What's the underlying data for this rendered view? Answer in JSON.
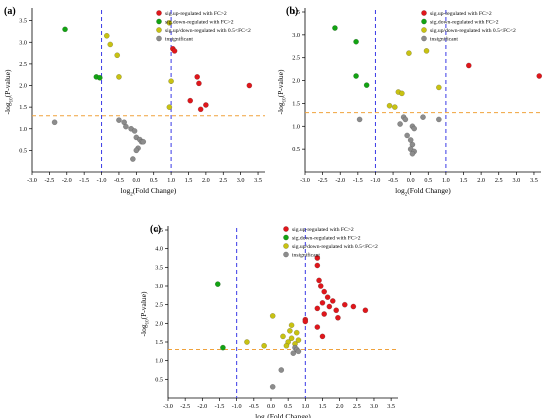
{
  "panels": [
    {
      "label": "(a)",
      "chart_data": {
        "type": "scatter",
        "xlabel_prefix": "log",
        "xlabel_sub": "2",
        "xlabel_suffix": "(Fold Change)",
        "ylabel_prefix": "-log",
        "ylabel_sub": "10",
        "ylabel_suffix": "(P-value)",
        "xlim": [
          -3.0,
          3.7
        ],
        "ylim": [
          0,
          3.7
        ],
        "xticks": [
          "-3.0",
          "-2.5",
          "-2.0",
          "-1.5",
          "-1.0",
          "-0.5",
          "0.0",
          "0.5",
          "1.0",
          "1.5",
          "2.0",
          "2.5",
          "3.0",
          "3.5"
        ],
        "yticks": [
          "0.5",
          "1.0",
          "1.5",
          "2.0",
          "2.5",
          "3.0",
          "3.5"
        ],
        "threshold_y": 1.3,
        "threshold_x": [
          -1,
          1
        ],
        "legend_position": "top-right",
        "series": [
          {
            "name": "sig.up-regulated with FC>2",
            "color": "#e0161b",
            "x": [
              1.05,
              1.1,
              1.55,
              1.75,
              1.8,
              2.0,
              1.85,
              3.25
            ],
            "y": [
              2.85,
              2.8,
              1.65,
              2.2,
              2.05,
              1.55,
              1.45,
              2.0
            ]
          },
          {
            "name": "sig.down-regulated with FC>2",
            "color": "#12a312",
            "x": [
              -2.05,
              -1.15,
              -1.05
            ],
            "y": [
              3.3,
              2.2,
              2.18
            ]
          },
          {
            "name": "sig.up/down-regulated with 0.5<FC<2",
            "color": "#c8c212",
            "x": [
              -0.85,
              -0.75,
              -0.55,
              -0.5,
              0.95,
              1.0,
              0.95
            ],
            "y": [
              3.15,
              2.95,
              2.7,
              2.2,
              3.45,
              2.1,
              1.5
            ]
          },
          {
            "name": "insignificant",
            "color": "#8c8c8c",
            "x": [
              -2.35,
              -0.5,
              -0.35,
              -0.3,
              -0.15,
              -0.05,
              0.0,
              0.1,
              0.15,
              0.2,
              0.05,
              0.0,
              -0.1
            ],
            "y": [
              1.15,
              1.2,
              1.15,
              1.05,
              1.0,
              0.95,
              0.8,
              0.75,
              0.7,
              0.7,
              0.55,
              0.5,
              0.3
            ]
          }
        ]
      }
    },
    {
      "label": "(b)",
      "chart_data": {
        "type": "scatter",
        "xlabel_prefix": "log",
        "xlabel_sub": "2",
        "xlabel_suffix": "(Fold Change)",
        "ylabel_prefix": "-log",
        "ylabel_sub": "10",
        "ylabel_suffix": "(P-value)",
        "xlim": [
          -3.0,
          3.7
        ],
        "ylim": [
          0,
          3.5
        ],
        "xticks": [
          "-3.0",
          "-2.5",
          "-2.0",
          "-1.5",
          "-1.0",
          "-0.5",
          "0.0",
          "0.5",
          "1.0",
          "1.5",
          "2.0",
          "2.5",
          "3.0",
          "3.5"
        ],
        "yticks": [
          "0.5",
          "1.0",
          "1.5",
          "2.0",
          "2.5",
          "3.0",
          "3.5"
        ],
        "threshold_y": 1.3,
        "threshold_x": [
          -1,
          1
        ],
        "legend_position": "top-right",
        "series": [
          {
            "name": "sig.up-regulated with FC>2",
            "color": "#e0161b",
            "x": [
              1.65,
              3.65
            ],
            "y": [
              2.33,
              2.1
            ]
          },
          {
            "name": "sig.down-regulated with FC>2",
            "color": "#12a312",
            "x": [
              -2.15,
              -1.55,
              -1.55,
              -1.25
            ],
            "y": [
              3.15,
              2.85,
              2.1,
              1.9
            ]
          },
          {
            "name": "sig.up/down-regulated with 0.5<FC<2",
            "color": "#c8c212",
            "x": [
              -0.05,
              0.45,
              -0.35,
              -0.25,
              -0.6,
              -0.45,
              0.8
            ],
            "y": [
              2.6,
              2.65,
              1.75,
              1.72,
              1.45,
              1.42,
              1.85
            ]
          },
          {
            "name": "insignificant",
            "color": "#8c8c8c",
            "x": [
              -1.45,
              -0.2,
              -0.15,
              -0.3,
              0.05,
              0.1,
              0.35,
              0.8,
              -0.1,
              0.0,
              0.05,
              0.0,
              0.1,
              0.05
            ],
            "y": [
              1.15,
              1.2,
              1.15,
              1.05,
              1.0,
              0.95,
              1.2,
              1.15,
              0.8,
              0.7,
              0.6,
              0.5,
              0.45,
              0.4
            ]
          }
        ]
      }
    },
    {
      "label": "(c)",
      "chart_data": {
        "type": "scatter",
        "xlabel_prefix": "log",
        "xlabel_sub": "2",
        "xlabel_suffix": "(Fold Change)",
        "ylabel_prefix": "-log",
        "ylabel_sub": "10",
        "ylabel_suffix": "(P-value)",
        "xlim": [
          -3.0,
          3.7
        ],
        "ylim": [
          0,
          4.5
        ],
        "xticks": [
          "-3.0",
          "-2.5",
          "-2.0",
          "-1.5",
          "-1.0",
          "-0.5",
          "0.0",
          "0.5",
          "1.0",
          "1.5",
          "2.0",
          "2.5",
          "3.0",
          "3.5"
        ],
        "yticks": [
          "0.5",
          "1.0",
          "1.5",
          "2.0",
          "2.5",
          "3.0",
          "3.5",
          "4.0",
          "4.5"
        ],
        "threshold_y": 1.3,
        "threshold_x": [
          -1,
          1
        ],
        "legend_position": "top-center",
        "series": [
          {
            "name": "sig.up-regulated with FC>2",
            "color": "#e0161b",
            "x": [
              1.35,
              1.35,
              1.4,
              1.45,
              1.55,
              1.65,
              1.8,
              1.5,
              1.7,
              1.35,
              2.15,
              1.9,
              2.4,
              1.55,
              1.95,
              1.0,
              1.0,
              2.75,
              1.35,
              1.5
            ],
            "y": [
              3.75,
              3.55,
              3.15,
              3.0,
              2.85,
              2.7,
              2.6,
              2.55,
              2.45,
              2.4,
              2.5,
              2.35,
              2.45,
              2.25,
              2.15,
              2.1,
              2.05,
              2.35,
              1.9,
              1.65
            ]
          },
          {
            "name": "sig.down-regulated with FC>2",
            "color": "#12a312",
            "x": [
              -1.55,
              -1.4
            ],
            "y": [
              3.05,
              1.35
            ]
          },
          {
            "name": "sig.up/down-regulated with 0.5<FC<2",
            "color": "#c8c212",
            "x": [
              0.05,
              0.6,
              0.55,
              0.75,
              0.35,
              0.6,
              0.5,
              0.7,
              0.8,
              0.45,
              -0.2,
              -0.7
            ],
            "y": [
              2.2,
              1.95,
              1.8,
              1.75,
              1.65,
              1.6,
              1.5,
              1.45,
              1.55,
              1.4,
              1.4,
              1.5
            ]
          },
          {
            "name": "insignificant",
            "color": "#8c8c8c",
            "x": [
              0.7,
              0.75,
              0.8,
              0.65,
              0.3,
              0.05
            ],
            "y": [
              1.35,
              1.3,
              1.25,
              1.2,
              0.75,
              0.3
            ]
          }
        ]
      }
    }
  ]
}
